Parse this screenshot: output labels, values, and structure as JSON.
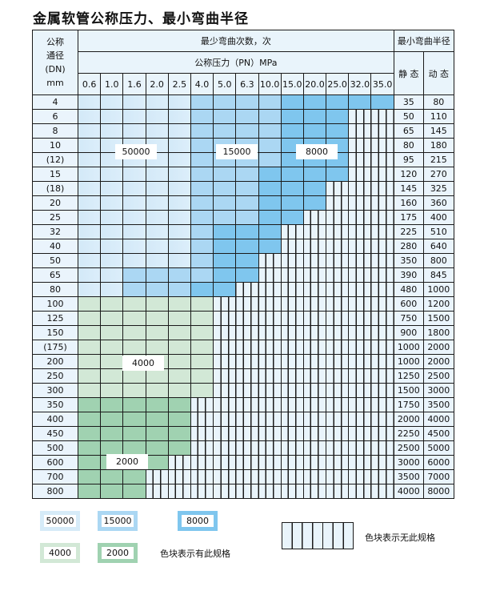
{
  "title": "金属软管公称压力、最小弯曲半径",
  "header": {
    "dn_label_lines": [
      "公称",
      "通径",
      "(DN)",
      "mm"
    ],
    "cycles_label": "最少弯曲次数，次",
    "pressure_label": "公称压力（PN）MPa",
    "radius_label": "最小弯曲半径",
    "static_label": "静 态",
    "dynamic_label": "动 态",
    "pressures": [
      "0.6",
      "1.0",
      "1.6",
      "2.0",
      "2.5",
      "4.0",
      "5.0",
      "6.3",
      "10.0",
      "15.0",
      "20.0",
      "25.0",
      "32.0",
      "35.0"
    ]
  },
  "cell_codes": {
    "L": 50000,
    "M": 15000,
    "D": 8000,
    "G": 4000,
    "H": 2000,
    "N": "无此规格"
  },
  "colors": {
    "L": "#d6ebf8",
    "M": "#abd7f3",
    "D": "#7fc6ee",
    "G": "#d2e8d6",
    "H": "#a0d2b1",
    "N": "#e9f4fb"
  },
  "rows": [
    {
      "dn": "4",
      "cells": "LLLLLMMMMDDDDD",
      "static": "35",
      "dynamic": "80"
    },
    {
      "dn": "6",
      "cells": "LLLLLMMMMDDDNN",
      "static": "50",
      "dynamic": "110"
    },
    {
      "dn": "8",
      "cells": "LLLLLMMMMDDDNN",
      "static": "65",
      "dynamic": "145"
    },
    {
      "dn": "10",
      "cells": "LLLLLMMMMDDDNN",
      "static": "80",
      "dynamic": "180"
    },
    {
      "dn": "(12)",
      "cells": "LLLLLMMMMDDDNN",
      "static": "95",
      "dynamic": "215"
    },
    {
      "dn": "15",
      "cells": "LLLLLMMMDDDDNN",
      "static": "120",
      "dynamic": "270"
    },
    {
      "dn": "(18)",
      "cells": "LLLLLMMMDDDNNN",
      "static": "145",
      "dynamic": "325"
    },
    {
      "dn": "20",
      "cells": "LLLLLMMMDDDNNN",
      "static": "160",
      "dynamic": "360"
    },
    {
      "dn": "25",
      "cells": "LLLLLMMMDDNNNN",
      "static": "175",
      "dynamic": "400"
    },
    {
      "dn": "32",
      "cells": "LLLLLMDDDNNNNN",
      "static": "225",
      "dynamic": "510"
    },
    {
      "dn": "40",
      "cells": "LLLLLMDDDNNNNN",
      "static": "280",
      "dynamic": "640"
    },
    {
      "dn": "50",
      "cells": "LLLLLMDDNNNNNN",
      "static": "350",
      "dynamic": "800"
    },
    {
      "dn": "65",
      "cells": "LLMMMMDDNNNNNN",
      "static": "390",
      "dynamic": "845"
    },
    {
      "dn": "80",
      "cells": "LLMMMDDNNNNNNN",
      "static": "480",
      "dynamic": "1000"
    },
    {
      "dn": "100",
      "cells": "GGGGGGNNNNNNNN",
      "static": "600",
      "dynamic": "1200"
    },
    {
      "dn": "125",
      "cells": "GGGGGGNNNNNNNN",
      "static": "750",
      "dynamic": "1500"
    },
    {
      "dn": "150",
      "cells": "GGGGGGNNNNNNNN",
      "static": "900",
      "dynamic": "1800"
    },
    {
      "dn": "(175)",
      "cells": "GGGGGGNNNNNNNN",
      "static": "1000",
      "dynamic": "2000"
    },
    {
      "dn": "200",
      "cells": "GGGGGGNNNNNNNN",
      "static": "1000",
      "dynamic": "2000"
    },
    {
      "dn": "250",
      "cells": "GGGGGGNNNNNNNN",
      "static": "1250",
      "dynamic": "2500"
    },
    {
      "dn": "300",
      "cells": "GGGGGGNNNNNNNN",
      "static": "1500",
      "dynamic": "3000"
    },
    {
      "dn": "350",
      "cells": "HHHHHNNNNNNNNN",
      "static": "1750",
      "dynamic": "3500"
    },
    {
      "dn": "400",
      "cells": "HHHHHNNNNNNNNN",
      "static": "2000",
      "dynamic": "4000"
    },
    {
      "dn": "450",
      "cells": "HHHHHNNNNNNNNN",
      "static": "2250",
      "dynamic": "4500"
    },
    {
      "dn": "500",
      "cells": "HHHHHNNNNNNNNN",
      "static": "2500",
      "dynamic": "5000"
    },
    {
      "dn": "600",
      "cells": "HHHHNNNNNNNNNN",
      "static": "3000",
      "dynamic": "6000"
    },
    {
      "dn": "700",
      "cells": "HHHNNNNNNNNNNN",
      "static": "3500",
      "dynamic": "7000"
    },
    {
      "dn": "800",
      "cells": "HHHNNNNNNNNNNN",
      "static": "4000",
      "dynamic": "8000"
    }
  ],
  "region_labels": {
    "l50000": "50000",
    "l15000": "15000",
    "l8000": "8000",
    "l4000": "4000",
    "l2000": "2000"
  },
  "legend": {
    "items": [
      "50000",
      "15000",
      "8000",
      "4000",
      "2000"
    ],
    "has_spec_text": "色块表示有此规格",
    "no_spec_text": "色块表示无此规格"
  }
}
